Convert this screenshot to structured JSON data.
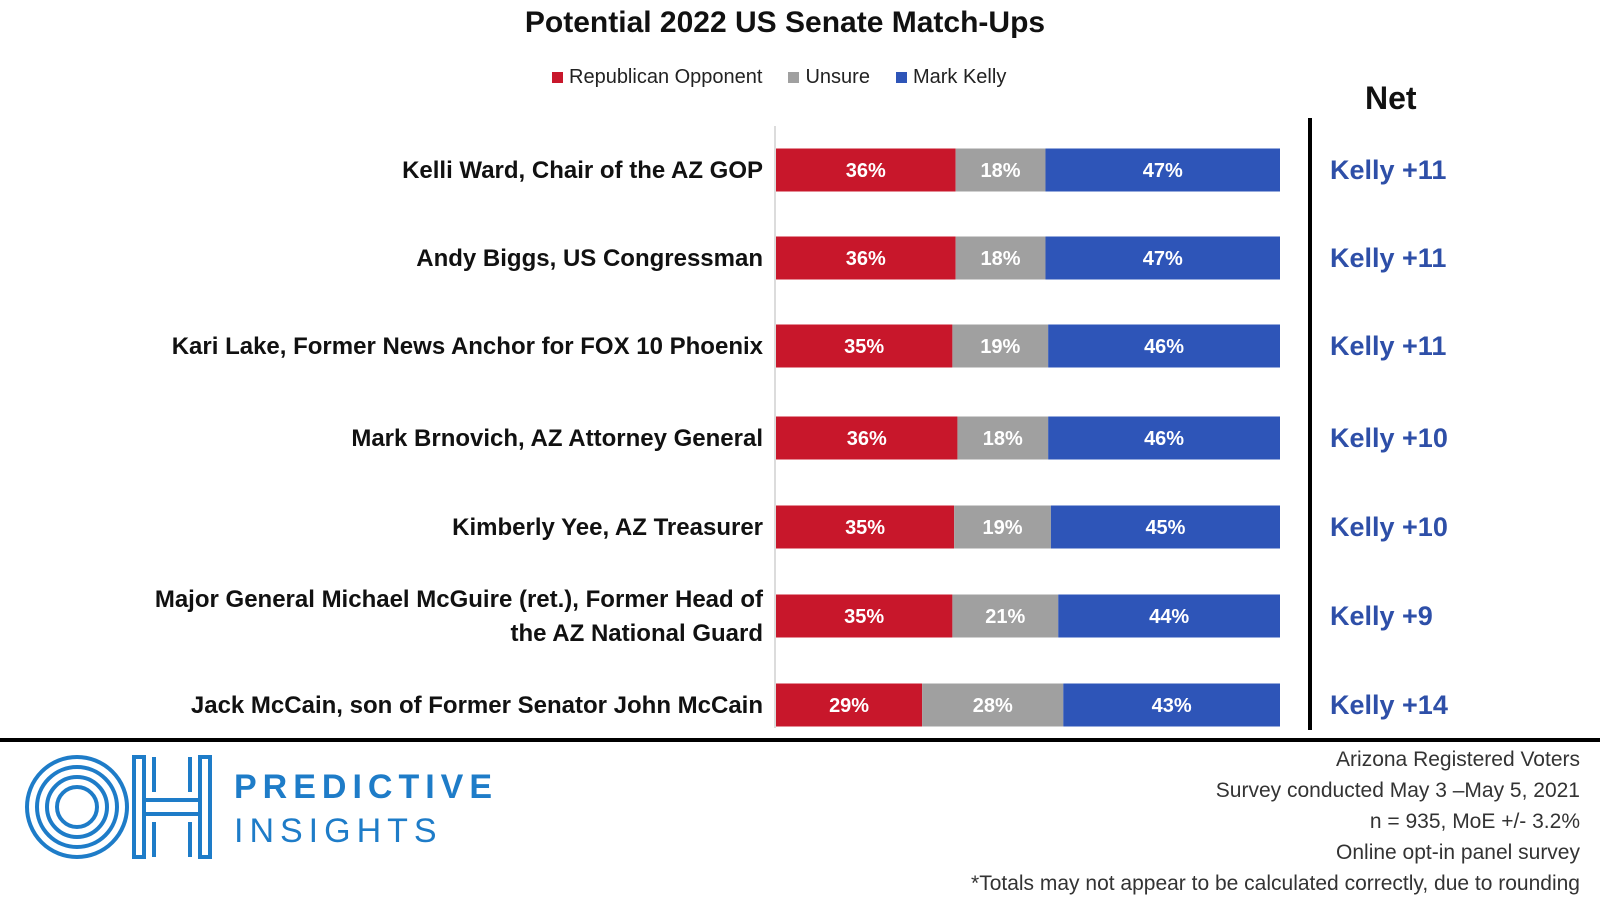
{
  "colors": {
    "republican": "#C8172B",
    "unsure": "#A0A0A0",
    "kelly": "#2E55B8",
    "net_text": "#2E4FA8",
    "logo_blue": "#1E7CC8"
  },
  "chart_data": {
    "type": "bar",
    "orientation": "horizontal",
    "stacked": true,
    "title": "Potential 2022 US Senate Match-Ups",
    "legend": {
      "placement": "top",
      "entries": [
        "Republican Opponent",
        "Unsure",
        "Mark Kelly"
      ]
    },
    "net_header": "Net",
    "categories": [
      [
        "Kelli Ward, Chair of the AZ GOP"
      ],
      [
        "Andy Biggs, US Congressman"
      ],
      [
        "Kari Lake, Former News Anchor for FOX 10 Phoenix"
      ],
      [
        "Mark Brnovich, AZ Attorney General"
      ],
      [
        "Kimberly Yee, AZ Treasurer"
      ],
      [
        "Major General Michael McGuire (ret.), Former Head of",
        "the AZ National Guard"
      ],
      [
        "Jack McCain, son of Former Senator John McCain"
      ]
    ],
    "series": [
      {
        "name": "Republican Opponent",
        "values": [
          36,
          36,
          35,
          36,
          35,
          35,
          29
        ],
        "labels": [
          "36%",
          "36%",
          "35%",
          "36%",
          "35%",
          "35%",
          "29%"
        ]
      },
      {
        "name": "Unsure",
        "values": [
          18,
          18,
          19,
          18,
          19,
          21,
          28
        ],
        "labels": [
          "18%",
          "18%",
          "19%",
          "18%",
          "19%",
          "21%",
          "28%"
        ]
      },
      {
        "name": "Mark Kelly",
        "values": [
          47,
          47,
          46,
          46,
          45,
          44,
          43
        ],
        "labels": [
          "47%",
          "47%",
          "46%",
          "46%",
          "45%",
          "44%",
          "43%"
        ]
      }
    ],
    "net": [
      "Kelly +11",
      "Kelly +11",
      "Kelly +11",
      "Kelly +10",
      "Kelly +10",
      "Kelly +9",
      "Kelly +14"
    ]
  },
  "logo": {
    "line1": "PREDICTIVE",
    "line2": "INSIGHTS",
    "icon": "oh-monogram-icon"
  },
  "footnotes": [
    "Arizona Registered Voters",
    "Survey conducted May 3 –May 5, 2021",
    "n = 935, MoE +/- 3.2%",
    "Online opt-in panel survey",
    "*Totals may not appear to be calculated correctly, due to rounding"
  ]
}
